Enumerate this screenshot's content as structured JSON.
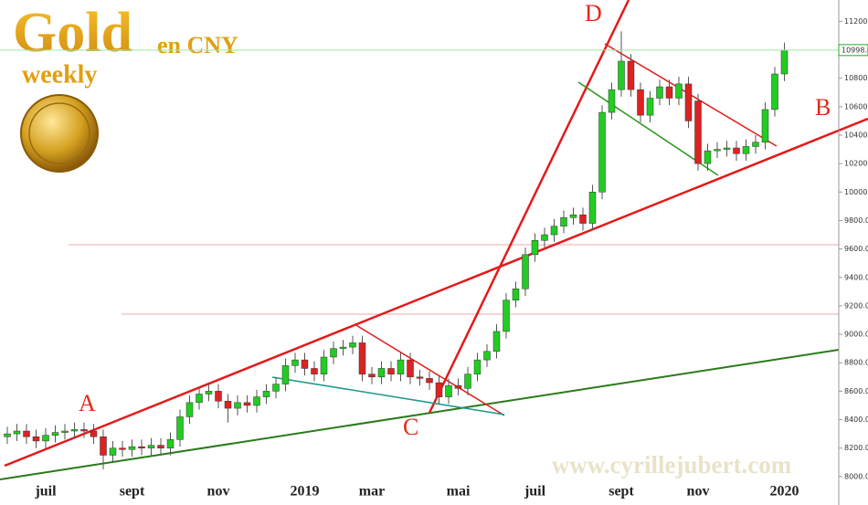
{
  "header": {
    "title": "Gold",
    "subtitle": "en CNY",
    "period": "weekly"
  },
  "chart_data": {
    "type": "candlestick",
    "categories": [
      null,
      null,
      null,
      null,
      "juil",
      null,
      null,
      null,
      null,
      null,
      null,
      null,
      null,
      "sept",
      null,
      null,
      null,
      null,
      null,
      null,
      null,
      null,
      "nov",
      null,
      null,
      null,
      null,
      null,
      null,
      null,
      null,
      "2019",
      null,
      null,
      null,
      null,
      null,
      null,
      "mar",
      null,
      null,
      null,
      null,
      null,
      null,
      null,
      null,
      "mai",
      null,
      null,
      null,
      null,
      null,
      null,
      null,
      "juil",
      null,
      null,
      null,
      null,
      null,
      null,
      null,
      null,
      "sept",
      null,
      null,
      null,
      null,
      null,
      null,
      null,
      "nov",
      null,
      null,
      null,
      null,
      null,
      null,
      null,
      null,
      "2020"
    ],
    "series": [
      {
        "up_color": "#22cc22",
        "down_color": "#dd2222",
        "open": [
          8280,
          8300,
          8320,
          8280,
          8250,
          8290,
          8310,
          8320,
          8330,
          8320,
          8280,
          8150,
          8200,
          8190,
          8210,
          8200,
          8220,
          8200,
          8260,
          8420,
          8520,
          8580,
          8600,
          8530,
          8480,
          8520,
          8500,
          8560,
          8600,
          8650,
          8780,
          8820,
          8760,
          8720,
          8840,
          8900,
          8910,
          8940,
          8720,
          8700,
          8760,
          8720,
          8820,
          8700,
          8690,
          8660,
          8560,
          8640,
          8620,
          8720,
          8820,
          8880,
          9020,
          9240,
          9320,
          9560,
          9660,
          9700,
          9760,
          9820,
          9840,
          9780,
          10000,
          10560,
          10720,
          10920,
          10720,
          10540,
          10660,
          10740,
          10660,
          10760,
          10640,
          10200,
          10290,
          10300,
          10310,
          10270,
          10320,
          10350,
          10580,
          10830
        ],
        "high": [
          8350,
          8370,
          8370,
          8330,
          8340,
          8360,
          8370,
          8380,
          8380,
          8370,
          8330,
          8250,
          8250,
          8260,
          8260,
          8270,
          8270,
          8310,
          8470,
          8570,
          8630,
          8650,
          8650,
          8580,
          8570,
          8570,
          8610,
          8650,
          8700,
          8830,
          8870,
          8870,
          8810,
          8890,
          8950,
          8960,
          8990,
          8990,
          8770,
          8810,
          8810,
          8870,
          8870,
          8750,
          8740,
          8710,
          8690,
          8690,
          8770,
          8870,
          8930,
          9070,
          9290,
          9370,
          9610,
          9710,
          9750,
          9810,
          9870,
          9890,
          9890,
          10050,
          10610,
          10770,
          11130,
          10970,
          10770,
          10710,
          10790,
          10790,
          10810,
          10810,
          10690,
          10340,
          10350,
          10360,
          10360,
          10370,
          10400,
          10630,
          10880,
          11050
        ],
        "low": [
          8230,
          8250,
          8230,
          8200,
          8200,
          8240,
          8260,
          8270,
          8270,
          8230,
          8050,
          8100,
          8140,
          8140,
          8150,
          8150,
          8150,
          8150,
          8210,
          8370,
          8470,
          8530,
          8480,
          8380,
          8430,
          8450,
          8450,
          8510,
          8550,
          8600,
          8730,
          8710,
          8670,
          8670,
          8790,
          8850,
          8860,
          8670,
          8650,
          8650,
          8670,
          8670,
          8650,
          8640,
          8610,
          8510,
          8510,
          8570,
          8570,
          8670,
          8770,
          8830,
          8970,
          9190,
          9270,
          9510,
          9610,
          9650,
          9710,
          9770,
          9730,
          9730,
          9950,
          10510,
          10670,
          10670,
          10490,
          10490,
          10610,
          10610,
          10610,
          10450,
          10150,
          10150,
          10240,
          10250,
          10220,
          10220,
          10270,
          10300,
          10530,
          10780
        ],
        "close": [
          8300,
          8320,
          8280,
          8250,
          8290,
          8310,
          8320,
          8330,
          8320,
          8280,
          8150,
          8200,
          8190,
          8210,
          8200,
          8220,
          8200,
          8260,
          8420,
          8520,
          8580,
          8600,
          8530,
          8480,
          8520,
          8500,
          8560,
          8600,
          8650,
          8780,
          8820,
          8760,
          8720,
          8840,
          8900,
          8910,
          8940,
          8720,
          8700,
          8760,
          8720,
          8820,
          8700,
          8690,
          8660,
          8560,
          8640,
          8620,
          8720,
          8820,
          8880,
          9020,
          9240,
          9320,
          9560,
          9660,
          9700,
          9760,
          9820,
          9840,
          9780,
          10000,
          10560,
          10720,
          10920,
          10720,
          10540,
          10660,
          10740,
          10660,
          10760,
          10500,
          10200,
          10290,
          10300,
          10310,
          10270,
          10320,
          10350,
          10580,
          10830,
          10998
        ]
      }
    ],
    "ylim": [
      7800,
      11350
    ],
    "yticks": [
      {
        "value": 8000,
        "label": "8000.00"
      },
      {
        "value": 8200,
        "label": "8200.00"
      },
      {
        "value": 8400,
        "label": "8400.00"
      },
      {
        "value": 8600,
        "label": "8600.00"
      },
      {
        "value": 8800,
        "label": "8800.00"
      },
      {
        "value": 9000,
        "label": "9000.00"
      },
      {
        "value": 9200,
        "label": "9200.00"
      },
      {
        "value": 9400,
        "label": "9400.00"
      },
      {
        "value": 9600,
        "label": "9600.00"
      },
      {
        "value": 9800,
        "label": "9800.00"
      },
      {
        "value": 10000,
        "label": "10000.00"
      },
      {
        "value": 10200,
        "label": "10200.00"
      },
      {
        "value": 10400,
        "label": "10400.00"
      },
      {
        "value": 10600,
        "label": "10600.00"
      },
      {
        "value": 10800,
        "label": "10800.00"
      },
      {
        "value": 11000,
        "label": "11000.00"
      },
      {
        "value": 11200,
        "label": "11200.00"
      }
    ],
    "last_price": {
      "value": 10998,
      "label": "10998.0"
    },
    "annotations": [
      "A",
      "B",
      "C",
      "D"
    ],
    "watermark": "www.cyrillejubert.com"
  }
}
